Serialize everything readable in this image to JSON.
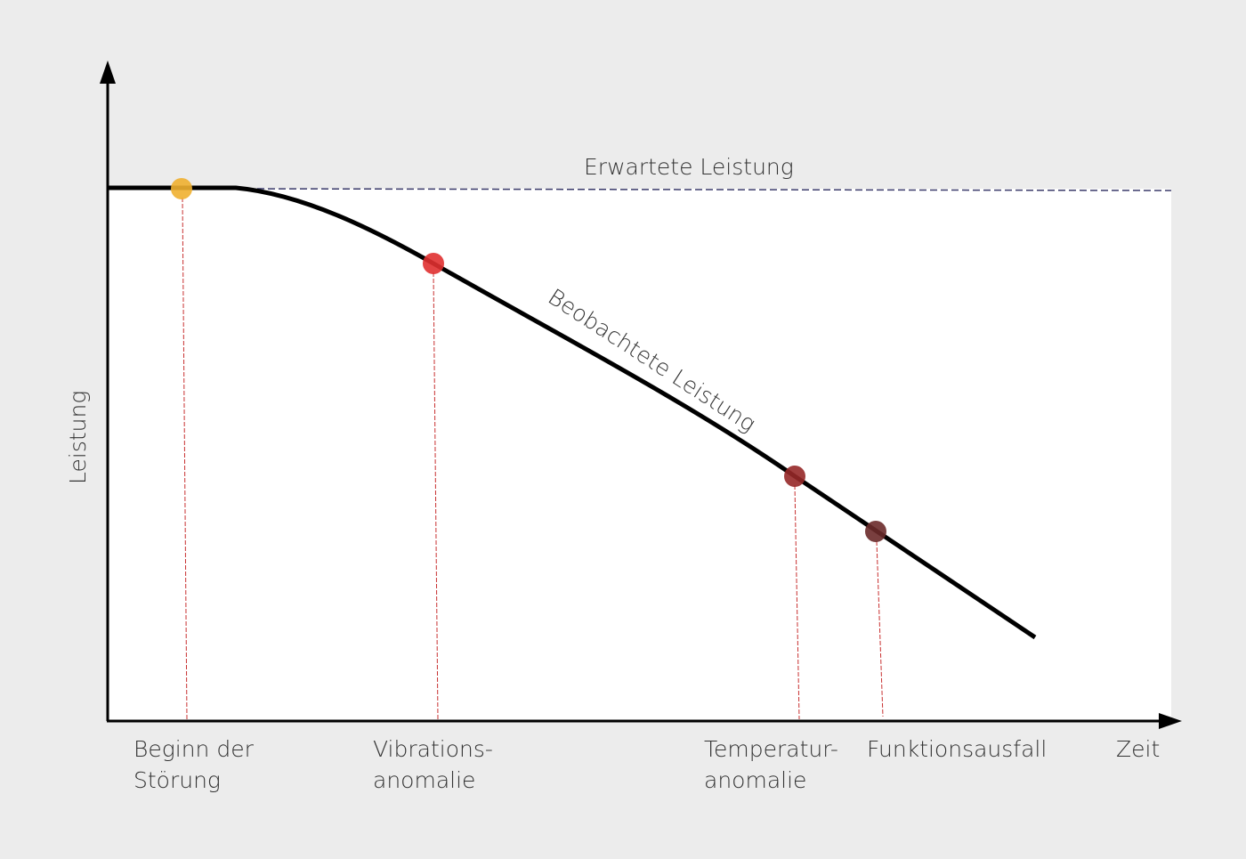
{
  "diagram": {
    "y_axis_label": "Leistung",
    "x_axis_label": "Zeit",
    "expected_label": "Erwartete Leistung",
    "observed_label": "Beobachtete Leistung",
    "events": [
      {
        "line1": "Beginn der",
        "line2": "Störung",
        "color": "#f0b030"
      },
      {
        "line1": "Vibrations-",
        "line2": "anomalie",
        "color": "#e03030"
      },
      {
        "line1": "Temperatur-",
        "line2": "anomalie",
        "color": "#962828"
      },
      {
        "line1": "Funktionsausfall",
        "line2": "",
        "color": "#6a2a2a"
      }
    ],
    "colors": {
      "background": "#ececec",
      "plot": "#ffffff",
      "curve": "#000000",
      "expected": "#3a3a6a",
      "dropline": "#c83030"
    }
  }
}
